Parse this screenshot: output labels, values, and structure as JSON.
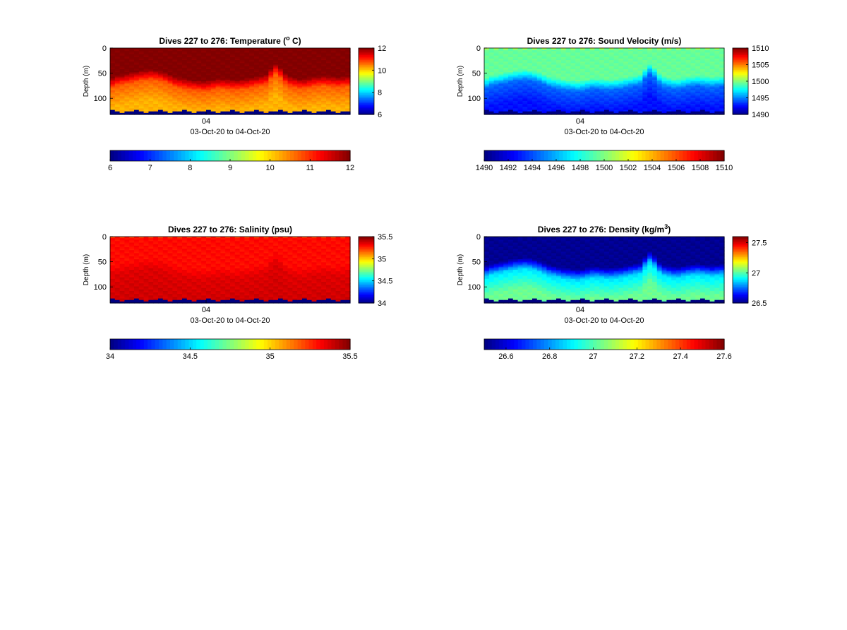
{
  "figure": {
    "chart_data": [
      {
        "type": "heatmap",
        "variable": "temperature",
        "title": "Dives 227 to 276: Temperature (",
        "title_sup": "o",
        "title_tail": " C)",
        "ylabel": "Depth (m)",
        "xtick_label": "04",
        "xlabel": "03-Oct-20 to 04-Oct-20",
        "yticks": [
          0,
          50,
          100
        ],
        "ylim": [
          0,
          132
        ],
        "clim": [
          6,
          12
        ],
        "colorbar_right_ticks": [
          6,
          8,
          10,
          12
        ],
        "colorbar_bottom_ticks": [
          6,
          7,
          8,
          9,
          10,
          11,
          12
        ],
        "profile": {
          "surface": 12,
          "mixed": 12,
          "thermocline": 10.7,
          "deep": 10.2,
          "bottom": 6,
          "mixed_layer_depth": [
            58,
            54,
            52,
            50,
            48,
            46,
            44,
            43,
            42,
            43,
            45,
            48,
            52,
            56,
            58,
            60,
            62,
            63,
            64,
            65,
            64,
            62,
            60,
            60,
            61,
            62,
            62,
            61,
            60,
            58,
            56,
            54,
            52,
            40,
            30,
            38,
            50,
            56,
            58,
            60,
            60,
            58,
            56,
            55,
            54,
            55,
            56,
            57,
            56,
            55
          ]
        }
      },
      {
        "type": "heatmap",
        "variable": "sound_velocity",
        "title": "Dives 227 to 276: Sound Velocity (m/s)",
        "ylabel": "Depth (m)",
        "xtick_label": "04",
        "xlabel": "03-Oct-20 to 04-Oct-20",
        "yticks": [
          0,
          50,
          100
        ],
        "ylim": [
          0,
          132
        ],
        "clim": [
          1490,
          1510
        ],
        "colorbar_right_ticks": [
          1490,
          1495,
          1500,
          1505,
          1510
        ],
        "colorbar_bottom_ticks": [
          1490,
          1492,
          1494,
          1496,
          1498,
          1500,
          1502,
          1504,
          1506,
          1508,
          1510
        ],
        "profile": {
          "surface": 1501,
          "mixed": 1499.5,
          "thermocline": 1494.5,
          "deep": 1492.8,
          "bottom": 1490,
          "mixed_layer_depth": [
            58,
            54,
            52,
            50,
            48,
            46,
            44,
            43,
            42,
            43,
            45,
            48,
            52,
            56,
            58,
            60,
            62,
            63,
            64,
            65,
            64,
            62,
            60,
            60,
            61,
            62,
            62,
            61,
            60,
            58,
            56,
            54,
            52,
            40,
            30,
            38,
            50,
            56,
            58,
            60,
            60,
            58,
            56,
            55,
            54,
            55,
            56,
            57,
            56,
            55
          ]
        }
      },
      {
        "type": "heatmap",
        "variable": "salinity",
        "title": "Dives 227 to 276: Salinity (psu)",
        "ylabel": "Depth (m)",
        "xtick_label": "04",
        "xlabel": "03-Oct-20 to 04-Oct-20",
        "yticks": [
          0,
          50,
          100
        ],
        "ylim": [
          0,
          132
        ],
        "clim": [
          34,
          35.5
        ],
        "colorbar_right_ticks": [
          34,
          34.5,
          35,
          35.5
        ],
        "colorbar_bottom_ticks": [
          34,
          34.5,
          35,
          35.5
        ],
        "profile": {
          "surface": 35.22,
          "mixed": 35.3,
          "thermocline": 35.36,
          "deep": 35.38,
          "bottom": 34,
          "mixed_layer_depth": [
            58,
            54,
            52,
            50,
            48,
            46,
            44,
            43,
            42,
            43,
            45,
            48,
            52,
            56,
            58,
            60,
            62,
            63,
            64,
            65,
            64,
            62,
            60,
            60,
            61,
            62,
            62,
            61,
            60,
            58,
            56,
            54,
            52,
            40,
            30,
            38,
            50,
            56,
            58,
            60,
            60,
            58,
            56,
            55,
            54,
            55,
            56,
            57,
            56,
            55
          ]
        }
      },
      {
        "type": "heatmap",
        "variable": "density",
        "title": "Dives 227 to 276: Density (kg/m",
        "title_sup": "3",
        "title_tail": ")",
        "ylabel": "Depth (m)",
        "xtick_label": "04",
        "xlabel": "03-Oct-20 to 04-Oct-20",
        "yticks": [
          0,
          50,
          100
        ],
        "ylim": [
          0,
          132
        ],
        "clim": [
          26.5,
          27.6
        ],
        "colorbar_right_ticks": [
          26.5,
          27,
          27.5
        ],
        "colorbar_bottom_ticks": [
          26.6,
          26.8,
          27,
          27.2,
          27.4,
          27.6
        ],
        "profile": {
          "surface": 26.5,
          "mixed": 26.52,
          "thermocline": 26.88,
          "deep": 27.03,
          "bottom": 26.5,
          "mixed_layer_depth": [
            58,
            54,
            52,
            50,
            48,
            46,
            44,
            43,
            42,
            43,
            45,
            48,
            52,
            56,
            58,
            60,
            62,
            63,
            64,
            65,
            64,
            62,
            60,
            60,
            61,
            62,
            62,
            61,
            60,
            58,
            56,
            54,
            52,
            40,
            30,
            38,
            50,
            56,
            58,
            60,
            60,
            58,
            56,
            55,
            54,
            55,
            56,
            57,
            56,
            55
          ]
        }
      }
    ]
  }
}
